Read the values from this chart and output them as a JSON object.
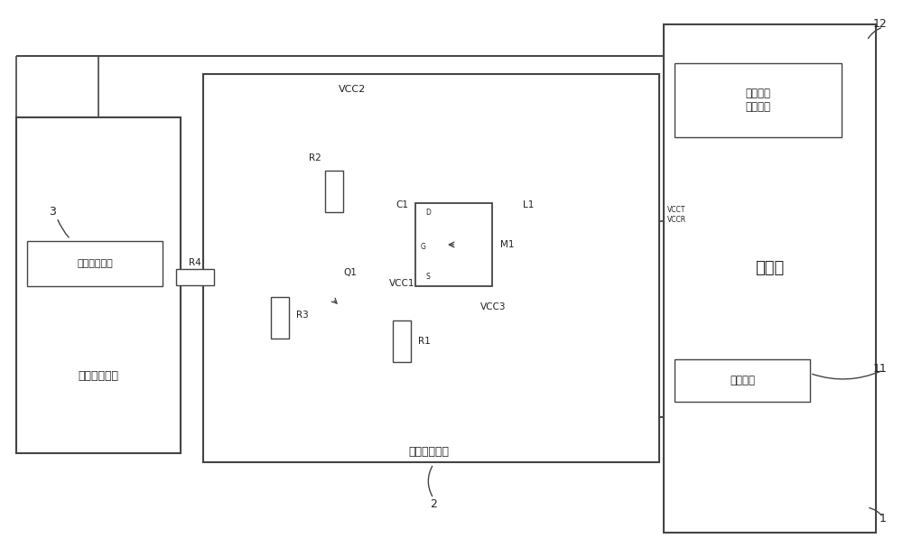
{
  "bg": "#ffffff",
  "lc": "#444444",
  "tc": "#222222",
  "lw": 1.2,
  "labels": {
    "vcc2": "VCC2",
    "vcc1": "VCC1",
    "vcc3": "VCC3",
    "c1": "C1",
    "r1": "R1",
    "r2": "R2",
    "r3": "R3",
    "r4": "R4",
    "l1": "L1",
    "m1": "M1",
    "q1": "Q1",
    "d_pin": "D",
    "g_pin": "G",
    "s_pin": "S",
    "vcct_vccr": "VCCT\nVCCR",
    "optical_module": "光模块",
    "pwr_ctrl": "电源控制模块",
    "pon": "无源光纤网络",
    "sw_pin": "开关选择引脚",
    "rx_loss": "接收信号\n丢失引脚",
    "present_pin": "在位引脚",
    "num_1": "1",
    "num_2": "2",
    "num_3": "3",
    "num_11": "11",
    "num_12": "12"
  }
}
